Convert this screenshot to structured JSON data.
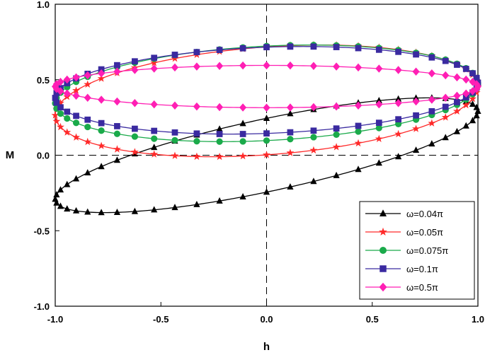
{
  "chart_data": {
    "type": "line",
    "title": "",
    "xlabel": "h",
    "ylabel": "M",
    "xlim": [
      -1.0,
      1.0
    ],
    "ylim": [
      -1.0,
      1.0
    ],
    "x_ticks": [
      "-1.0",
      "-0.5",
      "0.0",
      "0.5",
      "1.0"
    ],
    "y_ticks": [
      "-1.0",
      "-0.5",
      "0.0",
      "0.5",
      "1.0"
    ],
    "grid": false,
    "reference_lines": [
      "h = 0 (dashed)",
      "M = 0 (dashed)"
    ],
    "legend_position": "bottom-right",
    "series": [
      {
        "name": "ω=0.04π",
        "color": "#000000",
        "marker": "triangle",
        "loop": {
          "offset": 0.0,
          "amplitude": 0.38,
          "phase_deg": -40
        }
      },
      {
        "name": "ω=0.05π",
        "color": "#ff2a2a",
        "marker": "star",
        "loop": {
          "offset": 0.36,
          "amplitude": 0.37,
          "phase_deg": -75
        }
      },
      {
        "name": "ω=0.075π",
        "color": "#1aaa4a",
        "marker": "circle",
        "loop": {
          "offset": 0.41,
          "amplitude": 0.32,
          "phase_deg": -78
        }
      },
      {
        "name": "ω=0.1π",
        "color": "#3a2aa0",
        "marker": "square",
        "loop": {
          "offset": 0.43,
          "amplitude": 0.29,
          "phase_deg": -80
        }
      },
      {
        "name": "ω=0.5π",
        "color": "#ff1fb4",
        "marker": "diamond",
        "loop": {
          "offset": 0.455,
          "amplitude": 0.14,
          "phase_deg": -90
        }
      }
    ]
  }
}
